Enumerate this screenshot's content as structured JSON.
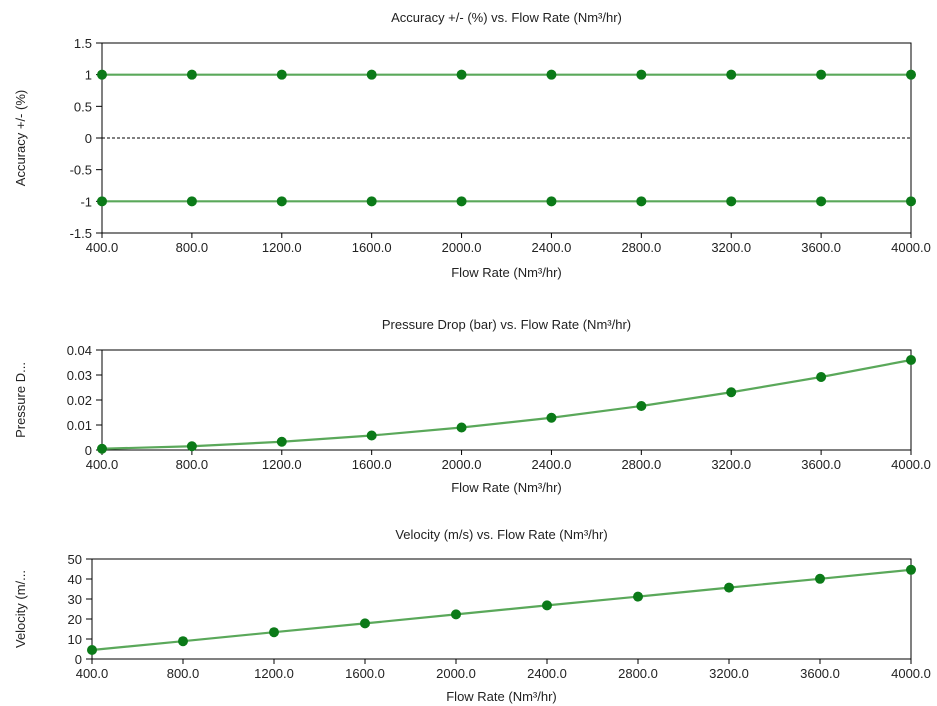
{
  "colors": {
    "series_line": "#5aa85a",
    "series_marker": "#0b7a18",
    "zero_line": "#000000",
    "frame": "#000000",
    "background": "#ffffff"
  },
  "chart_data": [
    {
      "type": "line",
      "title": "Accuracy +/- (%) vs. Flow Rate (Nm³/hr)",
      "xlabel": "Flow Rate (Nm³/hr)",
      "ylabel": "Accuracy +/- (%)",
      "xlim": [
        400,
        4000
      ],
      "ylim": [
        -1.5,
        1.5
      ],
      "xticks": [
        "400.0",
        "800.0",
        "1200.0",
        "1600.0",
        "2000.0",
        "2400.0",
        "2800.0",
        "3200.0",
        "3600.0",
        "4000.0"
      ],
      "yticks": [
        "1.5",
        "1",
        "0.5",
        "0",
        "-0.5",
        "-1",
        "-1.5"
      ],
      "x": [
        400,
        800,
        1200,
        1600,
        2000,
        2400,
        2800,
        3200,
        3600,
        4000
      ],
      "reference_line": 0,
      "series": [
        {
          "values": [
            1,
            1,
            1,
            1,
            1,
            1,
            1,
            1,
            1,
            1
          ]
        },
        {
          "values": [
            -1,
            -1,
            -1,
            -1,
            -1,
            -1,
            -1,
            -1,
            -1,
            -1
          ]
        }
      ]
    },
    {
      "type": "line",
      "title": "Pressure Drop (bar) vs. Flow Rate (Nm³/hr)",
      "xlabel": "Flow Rate (Nm³/hr)",
      "ylabel": "Pressure D...",
      "xlim": [
        400,
        4000
      ],
      "ylim": [
        0,
        0.04
      ],
      "xticks": [
        "400.0",
        "800.0",
        "1200.0",
        "1600.0",
        "2000.0",
        "2400.0",
        "2800.0",
        "3200.0",
        "3600.0",
        "4000.0"
      ],
      "yticks": [
        "0.04",
        "0.03",
        "0.02",
        "0.01",
        "0"
      ],
      "x": [
        400,
        800,
        1200,
        1600,
        2000,
        2400,
        2800,
        3200,
        3600,
        4000
      ],
      "series": [
        {
          "values": [
            0.0005,
            0.0015,
            0.0033,
            0.0058,
            0.009,
            0.0129,
            0.0176,
            0.0231,
            0.0292,
            0.036
          ]
        }
      ]
    },
    {
      "type": "line",
      "title": "Velocity (m/s) vs. Flow Rate (Nm³/hr)",
      "xlabel": "Flow Rate (Nm³/hr)",
      "ylabel": "Velocity (m/...",
      "xlim": [
        400,
        4000
      ],
      "ylim": [
        0,
        50
      ],
      "xticks": [
        "400.0",
        "800.0",
        "1200.0",
        "1600.0",
        "2000.0",
        "2400.0",
        "2800.0",
        "3200.0",
        "3600.0",
        "4000.0"
      ],
      "yticks": [
        "50",
        "40",
        "30",
        "20",
        "10",
        "0"
      ],
      "x": [
        400,
        800,
        1200,
        1600,
        2000,
        2400,
        2800,
        3200,
        3600,
        4000
      ],
      "series": [
        {
          "values": [
            4.5,
            8.9,
            13.4,
            17.8,
            22.3,
            26.8,
            31.2,
            35.7,
            40.1,
            44.6
          ]
        }
      ]
    }
  ]
}
